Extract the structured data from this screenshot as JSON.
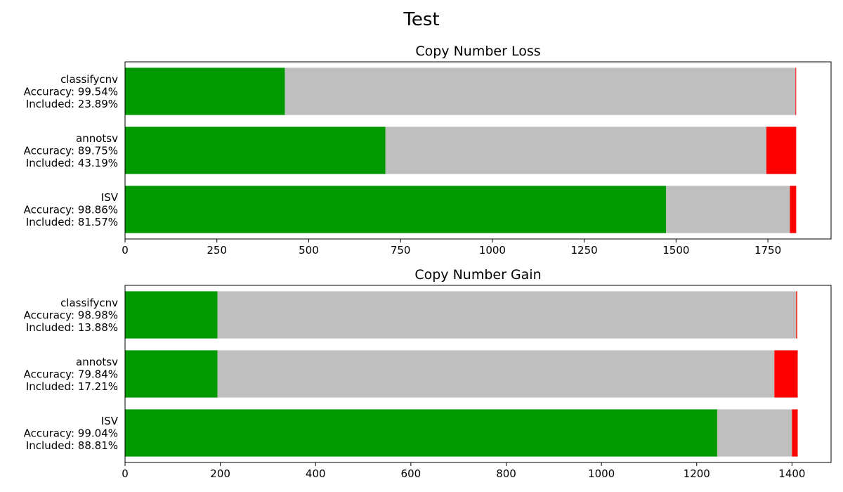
{
  "figure": {
    "title": "Test"
  },
  "colors": {
    "correct": "#009900",
    "excluded": "#bfbfbf",
    "incorrect": "#ff0000"
  },
  "chart_data": [
    {
      "type": "bar",
      "orientation": "horizontal",
      "stacked": true,
      "title": "Copy Number Loss",
      "categories": [
        "classifycnv",
        "annotsv",
        "ISV"
      ],
      "category_labels": [
        [
          "classifycnv",
          "Accuracy: 99.54%",
          "Included: 23.89%"
        ],
        [
          "annotsv",
          "Accuracy: 89.75%",
          "Included: 43.19%"
        ],
        [
          "ISV",
          "Accuracy: 98.86%",
          "Included: 81.57%"
        ]
      ],
      "series": [
        {
          "values": [
            435,
            709,
            1473
          ],
          "color": "#009900"
        },
        {
          "values": [
            1390,
            1037,
            337
          ],
          "color": "#bfbfbf"
        },
        {
          "values": [
            2,
            81,
            17
          ],
          "color": "#ff0000"
        }
      ],
      "xlim": [
        0,
        1922
      ],
      "xticks": [
        0,
        250,
        500,
        750,
        1000,
        1250,
        1500,
        1750
      ],
      "grid": false
    },
    {
      "type": "bar",
      "orientation": "horizontal",
      "stacked": true,
      "title": "Copy Number Gain",
      "categories": [
        "classifycnv",
        "annotsv",
        "ISV"
      ],
      "category_labels": [
        [
          "classifycnv",
          "Accuracy: 98.98%",
          "Included: 13.88%"
        ],
        [
          "annotsv",
          "Accuracy: 79.84%",
          "Included: 17.21%"
        ],
        [
          "ISV",
          "Accuracy: 99.04%",
          "Included: 88.81%"
        ]
      ],
      "series": [
        {
          "values": [
            194,
            194,
            1243
          ],
          "color": "#009900"
        },
        {
          "values": [
            1215,
            1169,
            157
          ],
          "color": "#bfbfbf"
        },
        {
          "values": [
            2,
            49,
            12
          ],
          "color": "#ff0000"
        }
      ],
      "xlim": [
        0,
        1482
      ],
      "xticks": [
        0,
        200,
        400,
        600,
        800,
        1000,
        1200,
        1400
      ],
      "grid": false
    }
  ]
}
